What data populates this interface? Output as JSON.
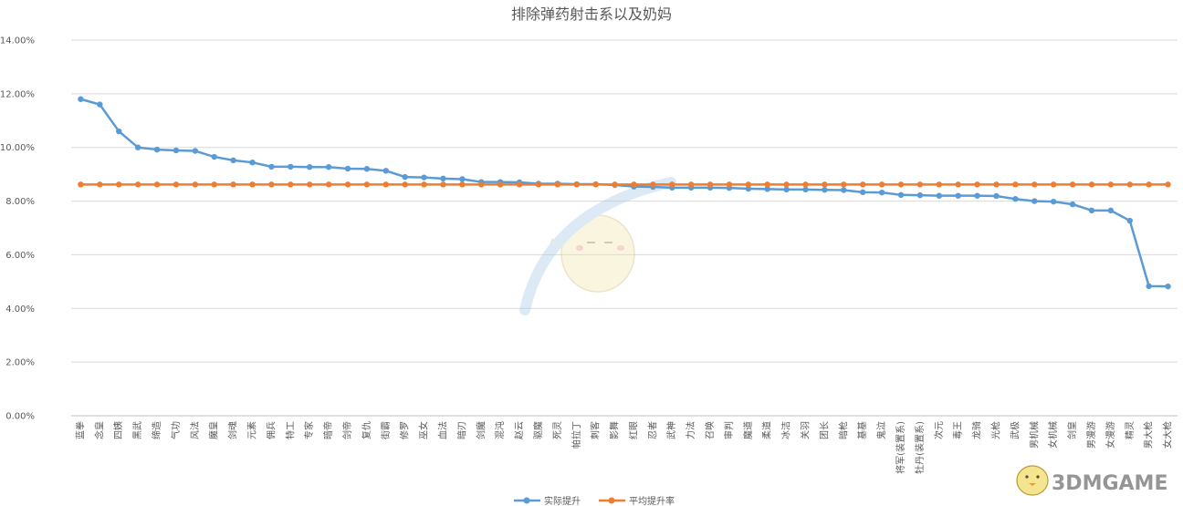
{
  "chart_data": {
    "type": "line",
    "title": "排除弹药射击系以及奶妈",
    "xlabel": "",
    "ylabel": "",
    "ylim": [
      0,
      14
    ],
    "yticks": [
      "0.00%",
      "2.00%",
      "4.00%",
      "6.00%",
      "8.00%",
      "10.00%",
      "12.00%",
      "14.00%"
    ],
    "grid": true,
    "legend_position": "bottom",
    "categories": [
      "蓝拳",
      "念皇",
      "四姨",
      "黑武",
      "缔造",
      "气功",
      "风法",
      "魔皇",
      "剑魂",
      "元素",
      "佣兵",
      "特工",
      "专家",
      "暗帝",
      "剑帝",
      "复仇",
      "街霸",
      "修罗",
      "巫女",
      "血法",
      "暗刃",
      "剑魔",
      "混沌",
      "赵云",
      "驱魔",
      "死灵",
      "帕拉丁",
      "刺客",
      "影舞",
      "红眼",
      "忍者",
      "武神",
      "力法",
      "召唤",
      "审判",
      "魔道",
      "柔道",
      "冰洁",
      "关羽",
      "团长",
      "暗枪",
      "基基",
      "鬼泣",
      "将军(装置系)",
      "牡丹(装置系)",
      "次元",
      "毒王",
      "龙骑",
      "光枪",
      "武极",
      "男机械",
      "女机械",
      "剑皇",
      "男漫游",
      "女漫游",
      "精灵",
      "男大枪",
      "女大枪"
    ],
    "series": [
      {
        "name": "实际提升",
        "color": "#5b9bd5",
        "values": [
          11.8,
          11.6,
          10.6,
          10.0,
          9.92,
          9.89,
          9.87,
          9.65,
          9.52,
          9.44,
          9.28,
          9.28,
          9.27,
          9.27,
          9.21,
          9.2,
          9.13,
          8.9,
          8.88,
          8.84,
          8.82,
          8.71,
          8.71,
          8.7,
          8.65,
          8.65,
          8.63,
          8.63,
          8.6,
          8.54,
          8.53,
          8.5,
          8.5,
          8.5,
          8.49,
          8.46,
          8.45,
          8.43,
          8.43,
          8.42,
          8.41,
          8.33,
          8.32,
          8.23,
          8.22,
          8.2,
          8.2,
          8.2,
          8.19,
          8.08,
          8.0,
          7.98,
          7.88,
          7.65,
          7.65,
          7.27,
          4.83,
          4.82
        ]
      },
      {
        "name": "平均提升率",
        "color": "#ed7d31",
        "values": [
          8.62,
          8.62,
          8.62,
          8.62,
          8.62,
          8.62,
          8.62,
          8.62,
          8.62,
          8.62,
          8.62,
          8.62,
          8.62,
          8.62,
          8.62,
          8.62,
          8.62,
          8.62,
          8.62,
          8.62,
          8.62,
          8.62,
          8.62,
          8.62,
          8.62,
          8.62,
          8.62,
          8.62,
          8.62,
          8.62,
          8.62,
          8.62,
          8.62,
          8.62,
          8.62,
          8.62,
          8.62,
          8.62,
          8.62,
          8.62,
          8.62,
          8.62,
          8.62,
          8.62,
          8.62,
          8.62,
          8.62,
          8.62,
          8.62,
          8.62,
          8.62,
          8.62,
          8.62,
          8.62,
          8.62,
          8.62,
          8.62,
          8.62
        ]
      }
    ]
  },
  "watermark": {
    "text": "3DMGAME",
    "mascot_icon": "chick-mascot-icon",
    "center_icon": "colg-mascot-watermark-icon"
  }
}
